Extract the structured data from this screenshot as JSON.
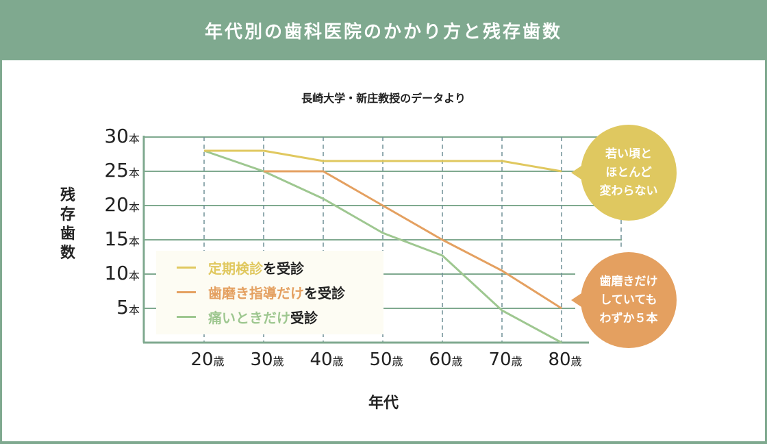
{
  "header": {
    "title": "年代別の歯科医院のかかり方と残存歯数"
  },
  "subtitle": "長崎大学・新庄教授のデータより",
  "axis": {
    "ylabel": "残存歯数",
    "xlabel": "年代",
    "yticks": [
      {
        "num": "30",
        "unit": "本"
      },
      {
        "num": "25",
        "unit": "本"
      },
      {
        "num": "20",
        "unit": "本"
      },
      {
        "num": "15",
        "unit": "本"
      },
      {
        "num": "10",
        "unit": "本"
      },
      {
        "num": "5",
        "unit": "本"
      }
    ],
    "xticks": [
      {
        "num": "20",
        "unit": "歳"
      },
      {
        "num": "30",
        "unit": "歳"
      },
      {
        "num": "40",
        "unit": "歳"
      },
      {
        "num": "50",
        "unit": "歳"
      },
      {
        "num": "60",
        "unit": "歳"
      },
      {
        "num": "70",
        "unit": "歳"
      },
      {
        "num": "80",
        "unit": "歳"
      }
    ]
  },
  "legend": [
    {
      "colored": "定期検診",
      "plain": "を受診",
      "color": "#e0c85f"
    },
    {
      "colored": "歯磨き指導だけ",
      "plain": "を受診",
      "color": "#e4a060"
    },
    {
      "colored": "痛いときだけ",
      "plain": "受診",
      "color": "#9ec790"
    }
  ],
  "bubbles": [
    {
      "lines": [
        "若い頃と",
        "ほとんど",
        "変わらない"
      ],
      "color": "#dfc860"
    },
    {
      "lines": [
        "歯磨きだけ",
        "していても",
        "わずか５本"
      ],
      "color": "#e4a060"
    }
  ],
  "colors": {
    "header": "#7fa98f",
    "grid": "#7fa98f",
    "dash": "#6f8f95"
  },
  "chart_data": {
    "type": "line",
    "title": "年代別の歯科医院のかかり方と残存歯数",
    "subtitle": "長崎大学・新庄教授のデータより",
    "xlabel": "年代",
    "ylabel": "残存歯数",
    "categories": [
      "20歳",
      "30歳",
      "40歳",
      "50歳",
      "60歳",
      "70歳",
      "80歳"
    ],
    "ylim": [
      0,
      30
    ],
    "yticks": [
      5,
      10,
      15,
      20,
      25,
      30
    ],
    "grid": true,
    "legend_position": "lower-left inside",
    "series": [
      {
        "name": "定期検診を受診",
        "color": "#e0c85f",
        "values": [
          28,
          28,
          26.5,
          26.5,
          26.5,
          26.5,
          25
        ]
      },
      {
        "name": "歯磨き指導だけを受診",
        "color": "#e4a060",
        "values": [
          28,
          25,
          25,
          20,
          15,
          10.5,
          5
        ]
      },
      {
        "name": "痛いときだけ受診",
        "color": "#9ec790",
        "values": [
          28,
          25,
          21,
          16,
          12.7,
          4.7,
          0
        ]
      }
    ],
    "annotations": [
      "若い頃とほとんど変わらない",
      "歯磨きだけしていてもわずか５本"
    ]
  }
}
